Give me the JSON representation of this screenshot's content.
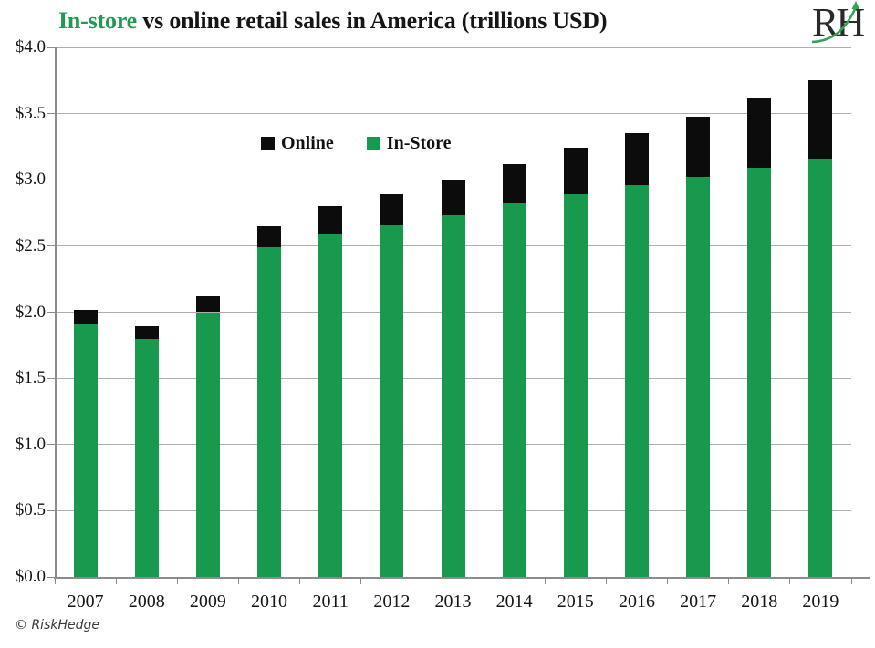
{
  "title": {
    "highlight": "In-store",
    "rest": " vs online retail sales in America (trillions USD)"
  },
  "logo": {
    "text": "RH"
  },
  "legend": {
    "online": "Online",
    "instore": "In-Store"
  },
  "footer": {
    "copyright": "© RiskHedge"
  },
  "colors": {
    "green": "#189a4e",
    "black": "#0c0c0c",
    "title_green": "#1e9b50",
    "grid": "#aeaeae",
    "axis": "#8c8c8c",
    "text": "#151515",
    "arrow_green": "#33a457"
  },
  "chart_data": {
    "type": "bar",
    "stacked": true,
    "title": "In-store vs online retail sales in America (trillions USD)",
    "categories": [
      "2007",
      "2008",
      "2009",
      "2010",
      "2011",
      "2012",
      "2013",
      "2014",
      "2015",
      "2016",
      "2017",
      "2018",
      "2019"
    ],
    "series": [
      {
        "name": "In-Store",
        "color_key": "green",
        "values": [
          1.91,
          1.8,
          2.0,
          2.49,
          2.59,
          2.66,
          2.73,
          2.82,
          2.89,
          2.96,
          3.02,
          3.09,
          3.15
        ]
      },
      {
        "name": "Online",
        "color_key": "black",
        "values": [
          0.11,
          0.09,
          0.12,
          0.16,
          0.21,
          0.23,
          0.27,
          0.3,
          0.35,
          0.39,
          0.46,
          0.53,
          0.6
        ]
      }
    ],
    "xlabel": "",
    "ylabel": "",
    "ylim": [
      0,
      4.0
    ],
    "ytick_step": 0.5,
    "y_tick_labels": [
      "$0.0",
      "$0.5",
      "$1.0",
      "$1.5",
      "$2.0",
      "$2.5",
      "$3.0",
      "$3.5",
      "$4.0"
    ],
    "grid": "horizontal",
    "legend_position": "inside-upper-left"
  }
}
